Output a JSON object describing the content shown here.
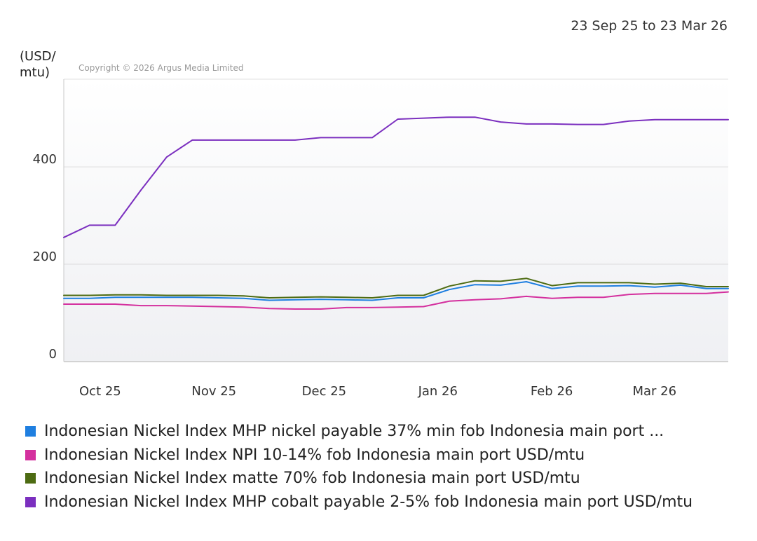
{
  "header": {
    "date_range": "23 Sep 25 to 23 Mar 26",
    "copyright": "Copyright © 2026 Argus Media Limited"
  },
  "chart_data": {
    "type": "line",
    "ylabel_line1": "(USD/",
    "ylabel_line2": "mtu)",
    "ylim": [
      0,
      580
    ],
    "yticks": [
      0,
      200,
      400
    ],
    "grid": true,
    "legend_position": "bottom",
    "x_range": [
      "2025-09-23",
      "2026-03-23"
    ],
    "x_tick_labels": [
      {
        "date": "2025-10-01",
        "label": "Oct 25"
      },
      {
        "date": "2025-11-01",
        "label": "Nov 25"
      },
      {
        "date": "2025-12-01",
        "label": "Dec 25"
      },
      {
        "date": "2026-01-01",
        "label": "Jan 26"
      },
      {
        "date": "2026-02-01",
        "label": "Feb 26"
      },
      {
        "date": "2026-03-01",
        "label": "Mar 26"
      }
    ],
    "x": [
      "2025-09-23",
      "2025-09-30",
      "2025-10-07",
      "2025-10-14",
      "2025-10-21",
      "2025-10-28",
      "2025-11-04",
      "2025-11-11",
      "2025-11-18",
      "2025-11-25",
      "2025-12-02",
      "2025-12-09",
      "2025-12-16",
      "2025-12-23",
      "2025-12-30",
      "2026-01-06",
      "2026-01-13",
      "2026-01-20",
      "2026-01-27",
      "2026-02-03",
      "2026-02-10",
      "2026-02-17",
      "2026-02-24",
      "2026-03-03",
      "2026-03-10",
      "2026-03-17",
      "2026-03-23"
    ],
    "series": [
      {
        "name": "Indonesian Nickel Index MHP nickel payable 37% min fob Indonesia main port ...",
        "color": "#1f7fe0",
        "values": [
          130,
          130,
          132,
          132,
          132,
          132,
          131,
          130,
          126,
          127,
          128,
          127,
          126,
          131,
          131,
          148,
          158,
          157,
          164,
          150,
          155,
          155,
          156,
          153,
          157,
          150,
          150
        ]
      },
      {
        "name": "Indonesian Nickel Index NPI 10-14% fob Indonesia main port USD/mtu",
        "color": "#d4309e",
        "values": [
          118,
          118,
          118,
          115,
          115,
          114,
          113,
          112,
          109,
          108,
          108,
          111,
          111,
          112,
          113,
          124,
          127,
          129,
          134,
          130,
          132,
          132,
          138,
          140,
          140,
          140,
          143
        ]
      },
      {
        "name": "Indonesian Nickel Index matte 70% fob Indonesia main port USD/mtu",
        "color": "#4d6b12",
        "values": [
          136,
          136,
          137,
          137,
          136,
          136,
          136,
          135,
          131,
          132,
          133,
          132,
          131,
          136,
          136,
          155,
          166,
          165,
          171,
          156,
          162,
          162,
          162,
          159,
          161,
          154,
          154
        ]
      },
      {
        "name": "Indonesian Nickel Index MHP cobalt payable 2-5% fob Indonesia main port USD/mtu",
        "color": "#7b2fbf",
        "values": [
          255,
          280,
          280,
          352,
          420,
          455,
          455,
          455,
          455,
          455,
          460,
          460,
          460,
          498,
          500,
          502,
          502,
          492,
          488,
          488,
          487,
          487,
          494,
          497,
          497,
          497,
          497
        ]
      }
    ]
  }
}
